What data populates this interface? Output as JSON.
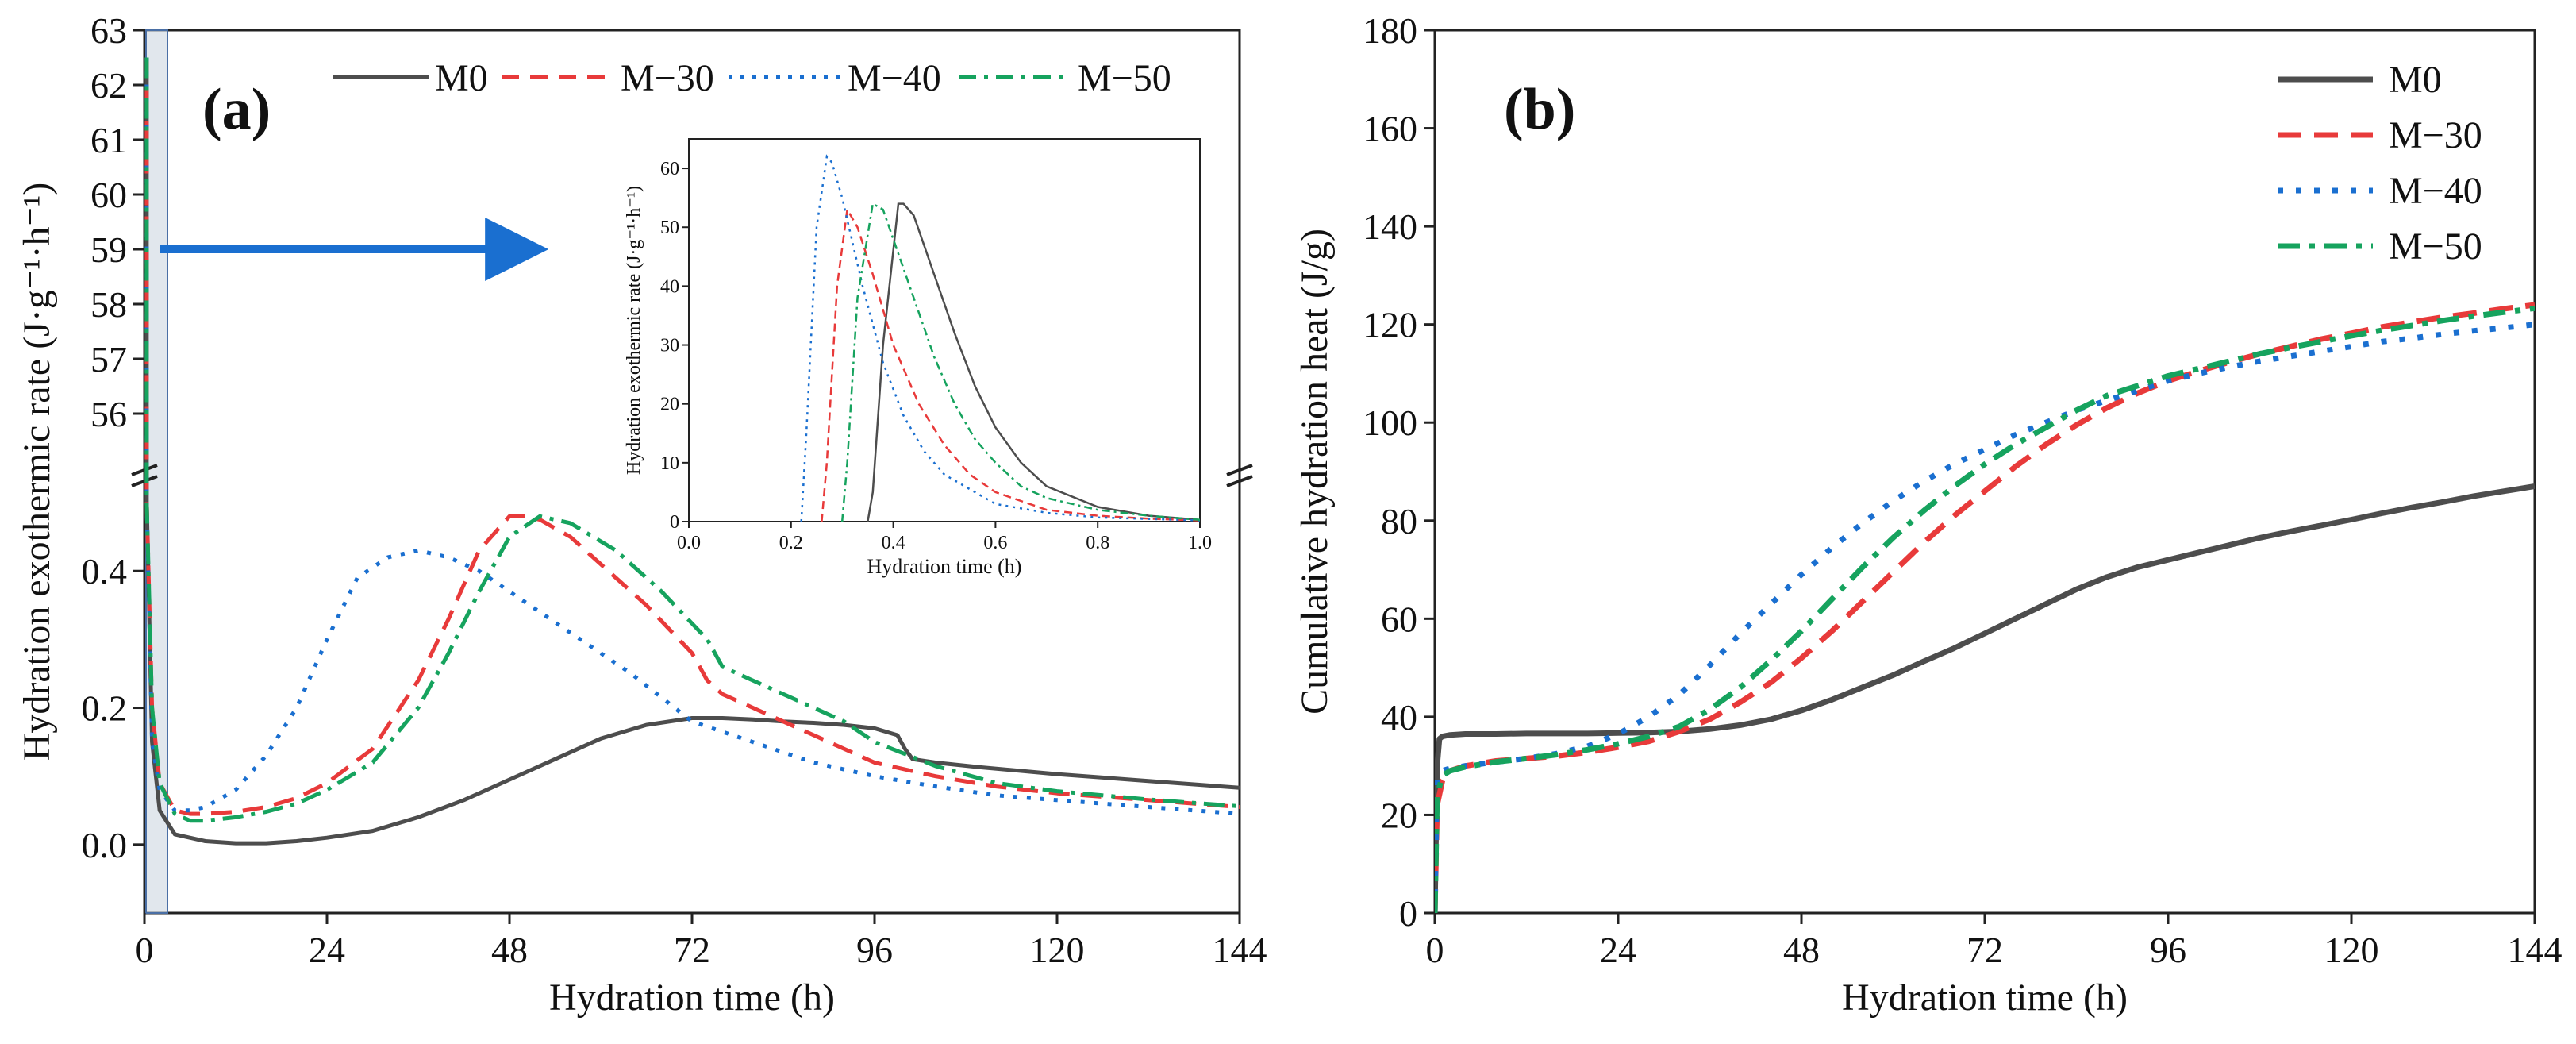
{
  "chart_data": [
    {
      "panel": "(a)",
      "type": "line",
      "xlabel": "Hydration time (h)",
      "ylabel": "Hydration exothermic rate (J·g⁻¹·h⁻¹)",
      "xlim": [
        0,
        144
      ],
      "xticks": [
        0,
        24,
        48,
        72,
        96,
        120,
        144
      ],
      "ylim_lower": [
        -0.1,
        0.55
      ],
      "yticks_lower": [
        0.0,
        0.2,
        0.4
      ],
      "ylim_upper": [
        55,
        63
      ],
      "yticks_upper": [
        56,
        57,
        58,
        59,
        60,
        61,
        62,
        63
      ],
      "legend": [
        "M0",
        "M−30",
        "M−40",
        "M−50"
      ],
      "legend_position": "top",
      "series": [
        {
          "name": "M0",
          "color": "#4d4d4d",
          "style": "solid",
          "x": [
            0.3,
            1,
            2,
            4,
            8,
            12,
            16,
            20,
            24,
            30,
            36,
            42,
            48,
            54,
            60,
            66,
            72,
            76,
            80,
            84,
            88,
            92,
            96,
            99,
            100,
            101,
            104,
            110,
            120,
            132,
            144
          ],
          "y": [
            0.5,
            0.15,
            0.05,
            0.015,
            0.005,
            0.002,
            0.002,
            0.005,
            0.01,
            0.02,
            0.04,
            0.065,
            0.095,
            0.125,
            0.155,
            0.175,
            0.185,
            0.185,
            0.183,
            0.18,
            0.178,
            0.175,
            0.17,
            0.16,
            0.14,
            0.125,
            0.12,
            0.113,
            0.103,
            0.093,
            0.083
          ]
        },
        {
          "name": "M−30",
          "color": "#e83a3a",
          "style": "dash",
          "x": [
            0.3,
            1,
            2,
            4,
            6,
            8,
            12,
            16,
            20,
            24,
            30,
            36,
            40,
            44,
            48,
            50,
            52,
            56,
            60,
            66,
            72,
            74,
            76,
            80,
            84,
            90,
            96,
            104,
            112,
            120,
            132,
            144
          ],
          "y": [
            0.5,
            0.2,
            0.09,
            0.05,
            0.045,
            0.045,
            0.048,
            0.055,
            0.068,
            0.09,
            0.14,
            0.24,
            0.33,
            0.43,
            0.48,
            0.48,
            0.475,
            0.45,
            0.41,
            0.35,
            0.28,
            0.24,
            0.22,
            0.2,
            0.18,
            0.15,
            0.12,
            0.1,
            0.085,
            0.075,
            0.065,
            0.055
          ]
        },
        {
          "name": "M−40",
          "color": "#1a6fd0",
          "style": "dot",
          "x": [
            0.3,
            1,
            2,
            4,
            6,
            8,
            12,
            16,
            20,
            24,
            28,
            32,
            36,
            40,
            44,
            48,
            56,
            64,
            72,
            80,
            88,
            96,
            104,
            112,
            120,
            132,
            144
          ],
          "y": [
            0.5,
            0.15,
            0.08,
            0.05,
            0.05,
            0.055,
            0.08,
            0.13,
            0.2,
            0.3,
            0.39,
            0.42,
            0.43,
            0.42,
            0.4,
            0.37,
            0.31,
            0.25,
            0.18,
            0.15,
            0.12,
            0.1,
            0.085,
            0.072,
            0.065,
            0.055,
            0.045
          ]
        },
        {
          "name": "M−50",
          "color": "#16a35e",
          "style": "dashdot",
          "x": [
            0.3,
            1,
            2,
            4,
            6,
            8,
            12,
            16,
            20,
            24,
            30,
            36,
            40,
            44,
            48,
            52,
            56,
            62,
            68,
            74,
            76,
            80,
            86,
            92,
            96,
            104,
            112,
            120,
            132,
            144
          ],
          "y": [
            0.5,
            0.2,
            0.09,
            0.045,
            0.035,
            0.035,
            0.04,
            0.048,
            0.06,
            0.08,
            0.12,
            0.2,
            0.28,
            0.37,
            0.45,
            0.48,
            0.47,
            0.43,
            0.37,
            0.3,
            0.26,
            0.24,
            0.21,
            0.18,
            0.15,
            0.115,
            0.09,
            0.078,
            0.066,
            0.056
          ]
        }
      ],
      "arrow": {
        "from_x": 2,
        "to_x": 50,
        "y": 59
      },
      "inset": {
        "xlabel": "Hydration time (h)",
        "ylabel": "Hydration exothermic rate (J·g⁻¹·h⁻¹)",
        "xlim": [
          0,
          1.0
        ],
        "ylim": [
          0,
          65
        ],
        "xticks": [
          0.0,
          0.2,
          0.4,
          0.6,
          0.8,
          1.0
        ],
        "yticks": [
          0,
          10,
          20,
          30,
          40,
          50,
          60
        ],
        "series": [
          {
            "name": "M0",
            "x": [
              0.35,
              0.36,
              0.38,
              0.41,
              0.42,
              0.44,
              0.48,
              0.52,
              0.56,
              0.6,
              0.65,
              0.7,
              0.8,
              0.9,
              1.0
            ],
            "y": [
              0,
              5,
              30,
              54,
              54,
              52,
              42,
              32,
              23,
              16,
              10,
              6,
              2.5,
              1,
              0.3
            ]
          },
          {
            "name": "M−30",
            "x": [
              0.26,
              0.27,
              0.29,
              0.31,
              0.33,
              0.36,
              0.4,
              0.45,
              0.5,
              0.55,
              0.6,
              0.7,
              0.8,
              0.9,
              1.0
            ],
            "y": [
              0,
              10,
              40,
              53,
              50,
              42,
              30,
              20,
              13,
              8,
              5,
              2,
              1,
              0.5,
              0.2
            ]
          },
          {
            "name": "M−40",
            "x": [
              0.22,
              0.23,
              0.25,
              0.27,
              0.28,
              0.3,
              0.34,
              0.38,
              0.42,
              0.46,
              0.5,
              0.6,
              0.7,
              0.8,
              1.0
            ],
            "y": [
              0,
              15,
              50,
              62,
              61,
              55,
              40,
              27,
              18,
              12,
              8,
              3,
              1.5,
              0.7,
              0.2
            ]
          },
          {
            "name": "M−50",
            "x": [
              0.3,
              0.31,
              0.33,
              0.36,
              0.38,
              0.4,
              0.44,
              0.48,
              0.52,
              0.56,
              0.6,
              0.65,
              0.7,
              0.8,
              0.9,
              1.0
            ],
            "y": [
              0,
              10,
              38,
              54,
              53,
              48,
              38,
              28,
              20,
              14,
              10,
              6,
              4,
              2,
              1,
              0.3
            ]
          }
        ]
      }
    },
    {
      "panel": "(b)",
      "type": "line",
      "xlabel": "Hydration time (h)",
      "ylabel": "Cumulative hydration heat (J/g)",
      "xlim": [
        0,
        144
      ],
      "ylim": [
        0,
        180
      ],
      "xticks": [
        0,
        24,
        48,
        72,
        96,
        120,
        144
      ],
      "yticks": [
        0,
        20,
        40,
        60,
        80,
        100,
        120,
        140,
        160,
        180
      ],
      "legend": [
        "M0",
        "M−30",
        "M−40",
        "M−50"
      ],
      "legend_position": "top-right",
      "series": [
        {
          "name": "M0",
          "color": "#4d4d4d",
          "style": "solid",
          "x": [
            0,
            0.3,
            0.6,
            1,
            2,
            4,
            8,
            12,
            16,
            20,
            24,
            28,
            32,
            36,
            40,
            44,
            48,
            52,
            56,
            60,
            64,
            68,
            72,
            76,
            80,
            84,
            88,
            92,
            96,
            100,
            104,
            108,
            112,
            116,
            120,
            124,
            128,
            132,
            136,
            140,
            144
          ],
          "y": [
            0,
            30,
            35.5,
            36,
            36.3,
            36.5,
            36.5,
            36.6,
            36.6,
            36.6,
            36.7,
            36.8,
            37,
            37.5,
            38.3,
            39.5,
            41.3,
            43.5,
            46,
            48.5,
            51.3,
            54,
            57,
            60,
            63,
            66,
            68.5,
            70.5,
            72,
            73.5,
            75,
            76.5,
            77.8,
            79,
            80.2,
            81.5,
            82.7,
            83.8,
            85,
            86,
            87
          ]
        },
        {
          "name": "M−30",
          "color": "#e83a3a",
          "style": "dash",
          "x": [
            0,
            0.3,
            1,
            2,
            4,
            8,
            12,
            16,
            20,
            24,
            28,
            32,
            36,
            40,
            44,
            48,
            52,
            56,
            60,
            64,
            68,
            72,
            76,
            80,
            84,
            88,
            92,
            96,
            100,
            104,
            108,
            112,
            116,
            120,
            124,
            128,
            132,
            136,
            140,
            144
          ],
          "y": [
            0,
            22,
            27,
            29,
            30,
            31,
            31.5,
            32,
            32.8,
            33.8,
            35,
            37,
            39.5,
            43,
            47,
            52,
            57.5,
            63.5,
            69.5,
            75.5,
            81,
            86,
            91,
            95.5,
            99.5,
            103,
            106,
            108.5,
            110.5,
            112.3,
            114,
            115.5,
            117,
            118.2,
            119.5,
            120.5,
            121.5,
            122.3,
            123.2,
            124
          ]
        },
        {
          "name": "M−40",
          "color": "#1a6fd0",
          "style": "dot",
          "x": [
            0,
            0.3,
            1,
            2,
            4,
            8,
            12,
            16,
            20,
            24,
            28,
            32,
            36,
            40,
            44,
            48,
            52,
            56,
            60,
            64,
            68,
            72,
            76,
            80,
            84,
            88,
            92,
            96,
            100,
            104,
            108,
            112,
            116,
            120,
            124,
            128,
            132,
            136,
            140,
            144
          ],
          "y": [
            0,
            28,
            29,
            29.5,
            30,
            30.8,
            31.5,
            32.5,
            34,
            36.5,
            40,
            44.5,
            50.5,
            57,
            63,
            69,
            74.5,
            79.5,
            84,
            88,
            91.5,
            94.5,
            97.5,
            100,
            102.5,
            104.5,
            106.5,
            108.5,
            110,
            111.3,
            112.5,
            113.5,
            114.5,
            115.5,
            116.5,
            117.2,
            118,
            118.7,
            119.3,
            120
          ]
        },
        {
          "name": "M−50",
          "color": "#16a35e",
          "style": "dashdot",
          "x": [
            0,
            0.3,
            1,
            2,
            4,
            8,
            12,
            16,
            20,
            24,
            28,
            32,
            36,
            40,
            44,
            48,
            52,
            56,
            60,
            64,
            68,
            72,
            76,
            80,
            84,
            88,
            92,
            96,
            100,
            104,
            108,
            112,
            116,
            120,
            124,
            128,
            132,
            136,
            140,
            144
          ],
          "y": [
            0,
            24,
            28,
            29,
            29.8,
            30.8,
            31.5,
            32.3,
            33.3,
            34.5,
            36,
            38,
            41.5,
            46,
            51.5,
            57.5,
            64,
            70.5,
            76.5,
            82,
            87,
            91.5,
            95.5,
            99,
            102.5,
            105.5,
            107.5,
            109.5,
            111,
            112.5,
            114,
            115.3,
            116.5,
            117.7,
            118.8,
            119.8,
            120.8,
            121.7,
            122.5,
            123.3
          ]
        }
      ]
    }
  ]
}
